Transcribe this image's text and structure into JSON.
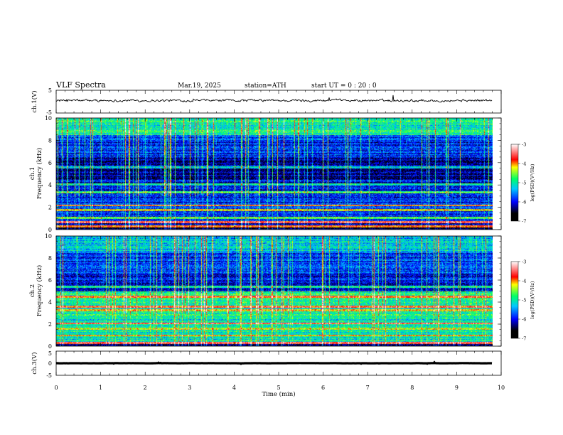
{
  "header": {
    "title": "VLF  Spectra",
    "date": "Mar.19, 2025",
    "station": "station=ATH",
    "start_ut": "start  UT  =   0  : 20 : 0"
  },
  "chart_data": [
    {
      "type": "line",
      "name": "ch1-waveform",
      "ylabel": "ch.1(V)",
      "ylim": [
        -5,
        5
      ],
      "yticks": [
        "5",
        "-5"
      ],
      "xlim": [
        0,
        10
      ],
      "mean_level": 0.5,
      "noise_amplitude": 0.9,
      "data_end_min": 9.8,
      "color": "#000000"
    },
    {
      "type": "heatmap",
      "name": "ch1-spectrogram",
      "ylabel_top": "ch.1",
      "ylabel": "Frequency  (kHz)",
      "ylim": [
        0,
        10
      ],
      "yticks": [
        "0",
        "2",
        "4",
        "6",
        "8",
        "10"
      ],
      "xlim": [
        0,
        10
      ],
      "data_end_min": 9.8,
      "colorbar": {
        "label": "log(PSD)(V²/Hz)",
        "range": [
          -7,
          -3
        ],
        "ticks": [
          "-3",
          "-4",
          "-5",
          "-6",
          "-7"
        ],
        "colors": [
          "#000000",
          "#0000ff",
          "#00c8ff",
          "#00ff66",
          "#ffff00",
          "#ff0000",
          "#ffffff"
        ]
      },
      "bands_khz": [
        {
          "f": 0.3,
          "level": -3.8
        },
        {
          "f": 0.7,
          "level": -3.6
        },
        {
          "f": 1.1,
          "level": -4.6
        },
        {
          "f": 1.8,
          "level": -4.4
        },
        {
          "f": 2.2,
          "level": -3.9
        },
        {
          "f": 3.4,
          "level": -4.8
        },
        {
          "f": 4.1,
          "level": -5.0
        },
        {
          "f": 5.6,
          "level": -5.2
        }
      ]
    },
    {
      "type": "heatmap",
      "name": "ch2-spectrogram",
      "ylabel_top": "ch.2",
      "ylabel": "Frequency  (kHz)",
      "ylim": [
        0,
        10
      ],
      "yticks": [
        "0",
        "2",
        "4",
        "6",
        "8",
        "10"
      ],
      "xlim": [
        0,
        10
      ],
      "data_end_min": 9.8,
      "colorbar": {
        "label": "log(PSD)(V²/Hz)",
        "range": [
          -7,
          -3
        ],
        "ticks": [
          "-3",
          "-4",
          "-5",
          "-6",
          "-7"
        ],
        "colors": [
          "#000000",
          "#0000ff",
          "#00c8ff",
          "#00ff66",
          "#ffff00",
          "#ff0000",
          "#ffffff"
        ]
      },
      "bands_khz": [
        {
          "f": 0.3,
          "level": -3.7
        },
        {
          "f": 1.0,
          "level": -4.2
        },
        {
          "f": 1.6,
          "level": -4.3
        },
        {
          "f": 2.1,
          "level": -3.6
        },
        {
          "f": 3.3,
          "level": -4.2
        },
        {
          "f": 3.6,
          "level": -3.9
        },
        {
          "f": 4.5,
          "level": -3.8
        },
        {
          "f": 5.4,
          "level": -4.9
        }
      ]
    },
    {
      "type": "line",
      "name": "ch3-waveform",
      "ylabel": "ch.3(V)",
      "ylim": [
        -5,
        5
      ],
      "yticks": [
        "5",
        "0",
        "-5"
      ],
      "xlim": [
        0,
        10
      ],
      "mean_level": 0.0,
      "noise_amplitude": 0.15,
      "data_end_min": 9.8,
      "color": "#000000"
    }
  ],
  "xaxis": {
    "label": "Time  (min)",
    "ticks": [
      "0",
      "1",
      "2",
      "3",
      "4",
      "5",
      "6",
      "7",
      "8",
      "9",
      "10"
    ]
  }
}
